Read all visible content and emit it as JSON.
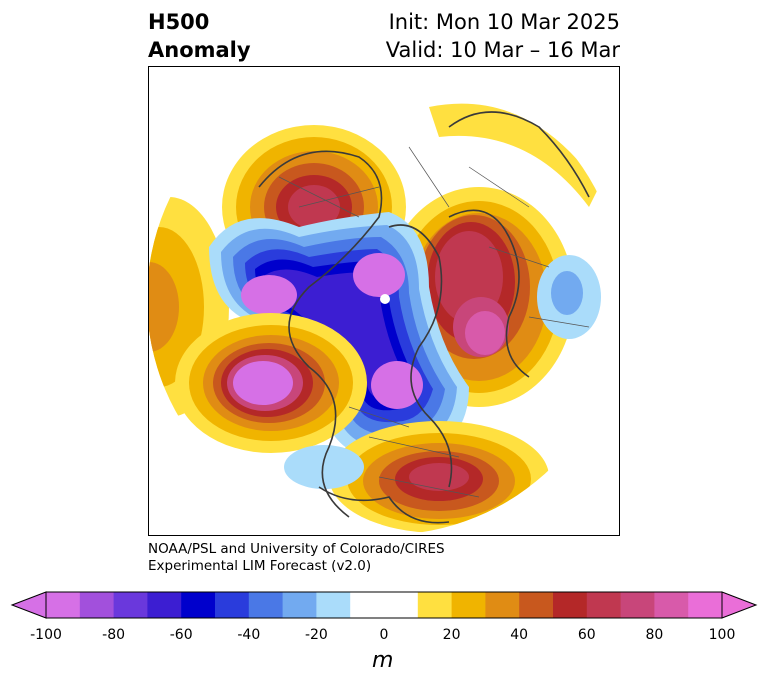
{
  "title": {
    "line1_left": "H500",
    "line2_left": "Anomaly",
    "line1_right": "Init: Mon 10 Mar 2025",
    "line2_right": "Valid: 10 Mar – 16 Mar"
  },
  "credit": {
    "line1": "NOAA/PSL and University of Colorado/CIRES",
    "line2": "Experimental LIM Forecast (v2.0)"
  },
  "colorbar": {
    "unit": "m",
    "tick_labels": [
      "-100",
      "-80",
      "-60",
      "-40",
      "-20",
      "0",
      "20",
      "40",
      "60",
      "80",
      "100"
    ],
    "colors": [
      "#d670e6",
      "#a250dc",
      "#6a38dc",
      "#3c1ed2",
      "#0000cc",
      "#2a3cdc",
      "#4a78e6",
      "#72aaf0",
      "#aadcfa",
      "#ffffff",
      "#ffffff",
      "#ffe040",
      "#f0b400",
      "#e08c14",
      "#c8581e",
      "#b42828",
      "#c03850",
      "#c8467a",
      "#d85aaa",
      "#ea6ed8"
    ],
    "extend": "both"
  },
  "colors": {
    "strong_positive": "#b42828",
    "strong_negative": "#0000cc",
    "extreme": "#d670e6"
  }
}
